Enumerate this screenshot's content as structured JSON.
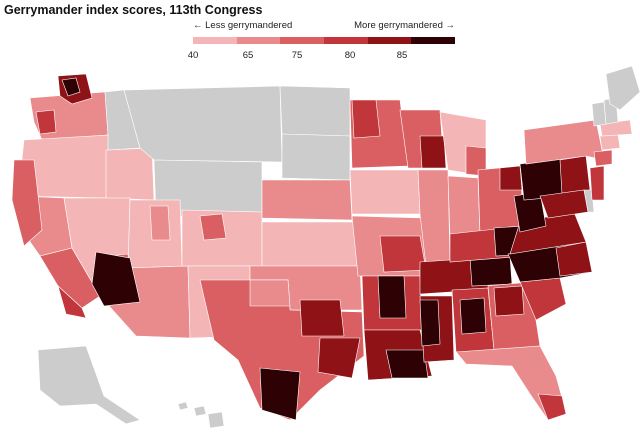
{
  "title": "Gerrymander index scores, 113th Congress",
  "legend": {
    "less_label": "← Less gerrymandered",
    "more_label": "More gerrymandered →",
    "ticks": [
      "40",
      "65",
      "75",
      "80",
      "85"
    ],
    "colors": [
      "#f4b5b6",
      "#e98b8d",
      "#d95f62",
      "#c1363b",
      "#8e1216",
      "#2e0205"
    ]
  },
  "map": {
    "no_data_color": "#cccccc",
    "no_data_states": [
      "Montana",
      "Idaho (north)",
      "Wyoming",
      "North Dakota",
      "South Dakota",
      "Maine",
      "New Hampshire",
      "Vermont",
      "Delaware",
      "Alaska",
      "Hawaii"
    ]
  }
}
